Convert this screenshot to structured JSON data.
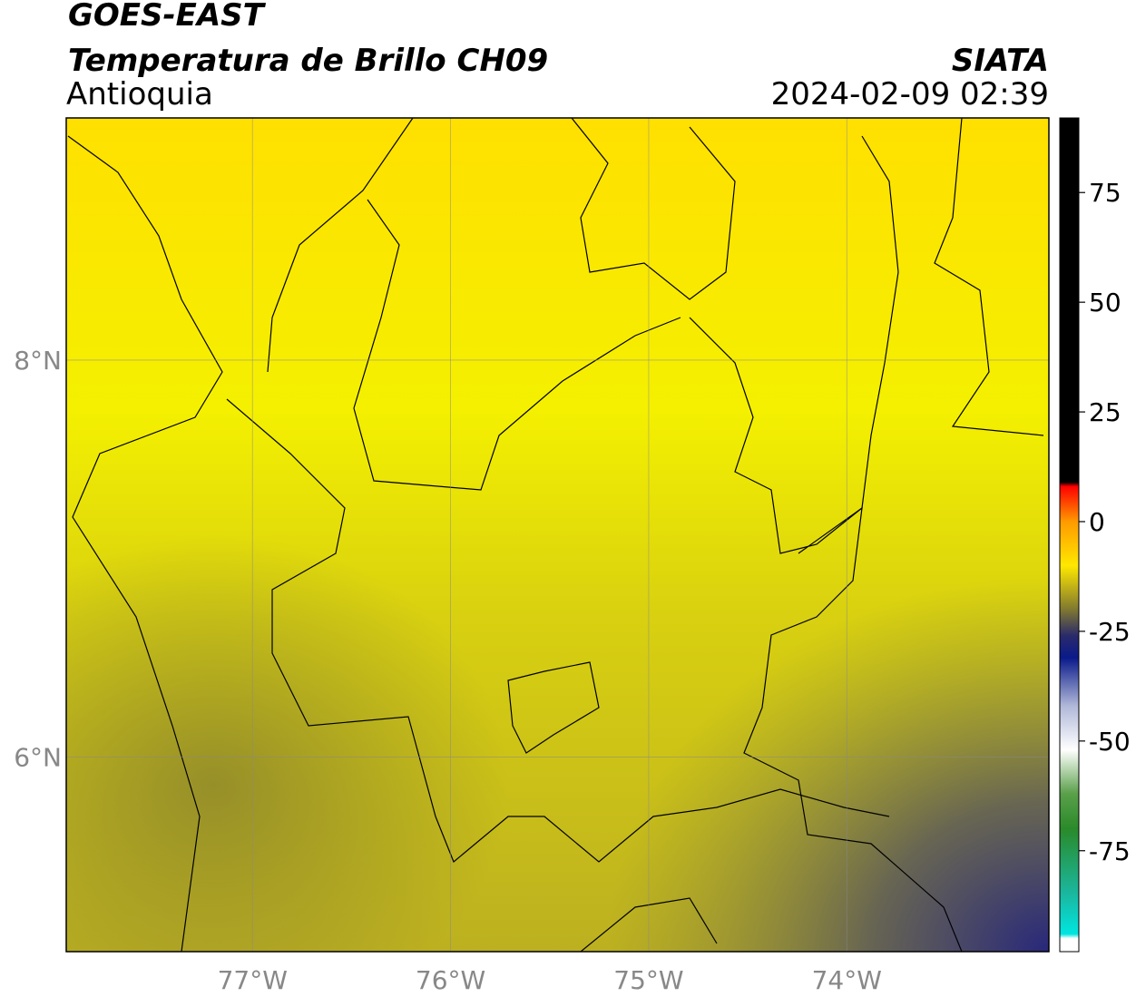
{
  "map": {
    "title": "GOES-EAST",
    "subtitle": "Temperatura de Brillo CH09",
    "region": "Antioquia",
    "source": "SIATA",
    "datetime": "2024-02-09 02:39",
    "xlim": [
      -77.94,
      -72.98
    ],
    "ylim": [
      5.02,
      9.22
    ],
    "xticks": [
      {
        "value": -77,
        "label": "77°W"
      },
      {
        "value": -76,
        "label": "76°W"
      },
      {
        "value": -75,
        "label": "75°W"
      },
      {
        "value": -74,
        "label": "74°W"
      }
    ],
    "yticks": [
      {
        "value": 8,
        "label": "8°N"
      },
      {
        "value": 6,
        "label": "6°N"
      }
    ],
    "grid": true,
    "colorbar": {
      "lim": [
        -98,
        92
      ],
      "ticks": [
        75,
        50,
        25,
        0,
        -25,
        -50,
        -75
      ],
      "colormap": [
        {
          "value": -98,
          "color": "#ffffff"
        },
        {
          "value": -95,
          "color": "#ffffff"
        },
        {
          "value": -94,
          "color": "#00e5e0"
        },
        {
          "value": -85,
          "color": "#1ab8a0"
        },
        {
          "value": -70,
          "color": "#2a8a2a"
        },
        {
          "value": -62,
          "color": "#5aa04a"
        },
        {
          "value": -52,
          "color": "#ffffff"
        },
        {
          "value": -42,
          "color": "#b0b8d8"
        },
        {
          "value": -31,
          "color": "#0a1a8a"
        },
        {
          "value": -26,
          "color": "#2a2a6a"
        },
        {
          "value": -20,
          "color": "#807830"
        },
        {
          "value": -10,
          "color": "#ffe800"
        },
        {
          "value": 0,
          "color": "#ff9a00"
        },
        {
          "value": 8,
          "color": "#ff0000"
        },
        {
          "value": 9,
          "color": "#000000"
        },
        {
          "value": 92,
          "color": "#000000"
        }
      ]
    }
  }
}
